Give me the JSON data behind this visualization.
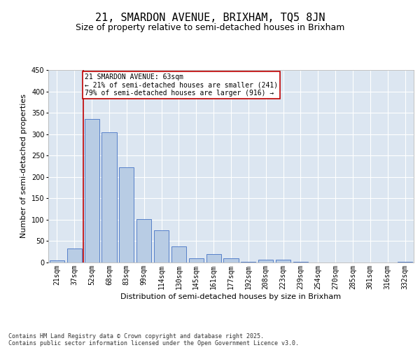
{
  "title_line1": "21, SMARDON AVENUE, BRIXHAM, TQ5 8JN",
  "title_line2": "Size of property relative to semi-detached houses in Brixham",
  "xlabel": "Distribution of semi-detached houses by size in Brixham",
  "ylabel": "Number of semi-detached properties",
  "categories": [
    "21sqm",
    "37sqm",
    "52sqm",
    "68sqm",
    "83sqm",
    "99sqm",
    "114sqm",
    "130sqm",
    "145sqm",
    "161sqm",
    "177sqm",
    "192sqm",
    "208sqm",
    "223sqm",
    "239sqm",
    "254sqm",
    "270sqm",
    "285sqm",
    "301sqm",
    "316sqm",
    "332sqm"
  ],
  "values": [
    5,
    33,
    335,
    305,
    222,
    101,
    75,
    38,
    10,
    20,
    10,
    2,
    6,
    7,
    1,
    0,
    0,
    0,
    0,
    0,
    1
  ],
  "bar_color": "#b8cce4",
  "bar_edge_color": "#4472c4",
  "vline_color": "#c00000",
  "annotation_text": "21 SMARDON AVENUE: 63sqm\n← 21% of semi-detached houses are smaller (241)\n79% of semi-detached houses are larger (916) →",
  "annotation_box_color": "#c00000",
  "plot_background": "#dce6f1",
  "ylim": [
    0,
    450
  ],
  "yticks": [
    0,
    50,
    100,
    150,
    200,
    250,
    300,
    350,
    400,
    450
  ],
  "footer_text": "Contains HM Land Registry data © Crown copyright and database right 2025.\nContains public sector information licensed under the Open Government Licence v3.0.",
  "title_fontsize": 11,
  "subtitle_fontsize": 9,
  "tick_fontsize": 7,
  "label_fontsize": 8,
  "annotation_fontsize": 7,
  "footer_fontsize": 6
}
